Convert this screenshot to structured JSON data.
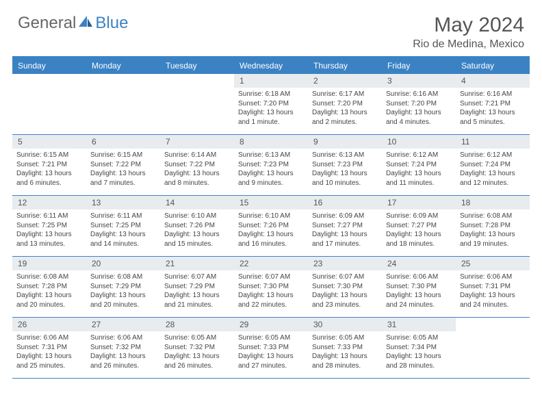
{
  "logo": {
    "part1": "General",
    "part2": "Blue"
  },
  "title": "May 2024",
  "location": "Rio de Medina, Mexico",
  "colors": {
    "brand_blue": "#3b82c4",
    "header_bg": "#e8ecef",
    "text": "#444444",
    "title_text": "#555555"
  },
  "weekdays": [
    "Sunday",
    "Monday",
    "Tuesday",
    "Wednesday",
    "Thursday",
    "Friday",
    "Saturday"
  ],
  "weeks": [
    [
      null,
      null,
      null,
      {
        "n": "1",
        "sunrise": "Sunrise: 6:18 AM",
        "sunset": "Sunset: 7:20 PM",
        "daylight": "Daylight: 13 hours and 1 minute."
      },
      {
        "n": "2",
        "sunrise": "Sunrise: 6:17 AM",
        "sunset": "Sunset: 7:20 PM",
        "daylight": "Daylight: 13 hours and 2 minutes."
      },
      {
        "n": "3",
        "sunrise": "Sunrise: 6:16 AM",
        "sunset": "Sunset: 7:20 PM",
        "daylight": "Daylight: 13 hours and 4 minutes."
      },
      {
        "n": "4",
        "sunrise": "Sunrise: 6:16 AM",
        "sunset": "Sunset: 7:21 PM",
        "daylight": "Daylight: 13 hours and 5 minutes."
      }
    ],
    [
      {
        "n": "5",
        "sunrise": "Sunrise: 6:15 AM",
        "sunset": "Sunset: 7:21 PM",
        "daylight": "Daylight: 13 hours and 6 minutes."
      },
      {
        "n": "6",
        "sunrise": "Sunrise: 6:15 AM",
        "sunset": "Sunset: 7:22 PM",
        "daylight": "Daylight: 13 hours and 7 minutes."
      },
      {
        "n": "7",
        "sunrise": "Sunrise: 6:14 AM",
        "sunset": "Sunset: 7:22 PM",
        "daylight": "Daylight: 13 hours and 8 minutes."
      },
      {
        "n": "8",
        "sunrise": "Sunrise: 6:13 AM",
        "sunset": "Sunset: 7:23 PM",
        "daylight": "Daylight: 13 hours and 9 minutes."
      },
      {
        "n": "9",
        "sunrise": "Sunrise: 6:13 AM",
        "sunset": "Sunset: 7:23 PM",
        "daylight": "Daylight: 13 hours and 10 minutes."
      },
      {
        "n": "10",
        "sunrise": "Sunrise: 6:12 AM",
        "sunset": "Sunset: 7:24 PM",
        "daylight": "Daylight: 13 hours and 11 minutes."
      },
      {
        "n": "11",
        "sunrise": "Sunrise: 6:12 AM",
        "sunset": "Sunset: 7:24 PM",
        "daylight": "Daylight: 13 hours and 12 minutes."
      }
    ],
    [
      {
        "n": "12",
        "sunrise": "Sunrise: 6:11 AM",
        "sunset": "Sunset: 7:25 PM",
        "daylight": "Daylight: 13 hours and 13 minutes."
      },
      {
        "n": "13",
        "sunrise": "Sunrise: 6:11 AM",
        "sunset": "Sunset: 7:25 PM",
        "daylight": "Daylight: 13 hours and 14 minutes."
      },
      {
        "n": "14",
        "sunrise": "Sunrise: 6:10 AM",
        "sunset": "Sunset: 7:26 PM",
        "daylight": "Daylight: 13 hours and 15 minutes."
      },
      {
        "n": "15",
        "sunrise": "Sunrise: 6:10 AM",
        "sunset": "Sunset: 7:26 PM",
        "daylight": "Daylight: 13 hours and 16 minutes."
      },
      {
        "n": "16",
        "sunrise": "Sunrise: 6:09 AM",
        "sunset": "Sunset: 7:27 PM",
        "daylight": "Daylight: 13 hours and 17 minutes."
      },
      {
        "n": "17",
        "sunrise": "Sunrise: 6:09 AM",
        "sunset": "Sunset: 7:27 PM",
        "daylight": "Daylight: 13 hours and 18 minutes."
      },
      {
        "n": "18",
        "sunrise": "Sunrise: 6:08 AM",
        "sunset": "Sunset: 7:28 PM",
        "daylight": "Daylight: 13 hours and 19 minutes."
      }
    ],
    [
      {
        "n": "19",
        "sunrise": "Sunrise: 6:08 AM",
        "sunset": "Sunset: 7:28 PM",
        "daylight": "Daylight: 13 hours and 20 minutes."
      },
      {
        "n": "20",
        "sunrise": "Sunrise: 6:08 AM",
        "sunset": "Sunset: 7:29 PM",
        "daylight": "Daylight: 13 hours and 20 minutes."
      },
      {
        "n": "21",
        "sunrise": "Sunrise: 6:07 AM",
        "sunset": "Sunset: 7:29 PM",
        "daylight": "Daylight: 13 hours and 21 minutes."
      },
      {
        "n": "22",
        "sunrise": "Sunrise: 6:07 AM",
        "sunset": "Sunset: 7:30 PM",
        "daylight": "Daylight: 13 hours and 22 minutes."
      },
      {
        "n": "23",
        "sunrise": "Sunrise: 6:07 AM",
        "sunset": "Sunset: 7:30 PM",
        "daylight": "Daylight: 13 hours and 23 minutes."
      },
      {
        "n": "24",
        "sunrise": "Sunrise: 6:06 AM",
        "sunset": "Sunset: 7:30 PM",
        "daylight": "Daylight: 13 hours and 24 minutes."
      },
      {
        "n": "25",
        "sunrise": "Sunrise: 6:06 AM",
        "sunset": "Sunset: 7:31 PM",
        "daylight": "Daylight: 13 hours and 24 minutes."
      }
    ],
    [
      {
        "n": "26",
        "sunrise": "Sunrise: 6:06 AM",
        "sunset": "Sunset: 7:31 PM",
        "daylight": "Daylight: 13 hours and 25 minutes."
      },
      {
        "n": "27",
        "sunrise": "Sunrise: 6:06 AM",
        "sunset": "Sunset: 7:32 PM",
        "daylight": "Daylight: 13 hours and 26 minutes."
      },
      {
        "n": "28",
        "sunrise": "Sunrise: 6:05 AM",
        "sunset": "Sunset: 7:32 PM",
        "daylight": "Daylight: 13 hours and 26 minutes."
      },
      {
        "n": "29",
        "sunrise": "Sunrise: 6:05 AM",
        "sunset": "Sunset: 7:33 PM",
        "daylight": "Daylight: 13 hours and 27 minutes."
      },
      {
        "n": "30",
        "sunrise": "Sunrise: 6:05 AM",
        "sunset": "Sunset: 7:33 PM",
        "daylight": "Daylight: 13 hours and 28 minutes."
      },
      {
        "n": "31",
        "sunrise": "Sunrise: 6:05 AM",
        "sunset": "Sunset: 7:34 PM",
        "daylight": "Daylight: 13 hours and 28 minutes."
      },
      null
    ]
  ]
}
